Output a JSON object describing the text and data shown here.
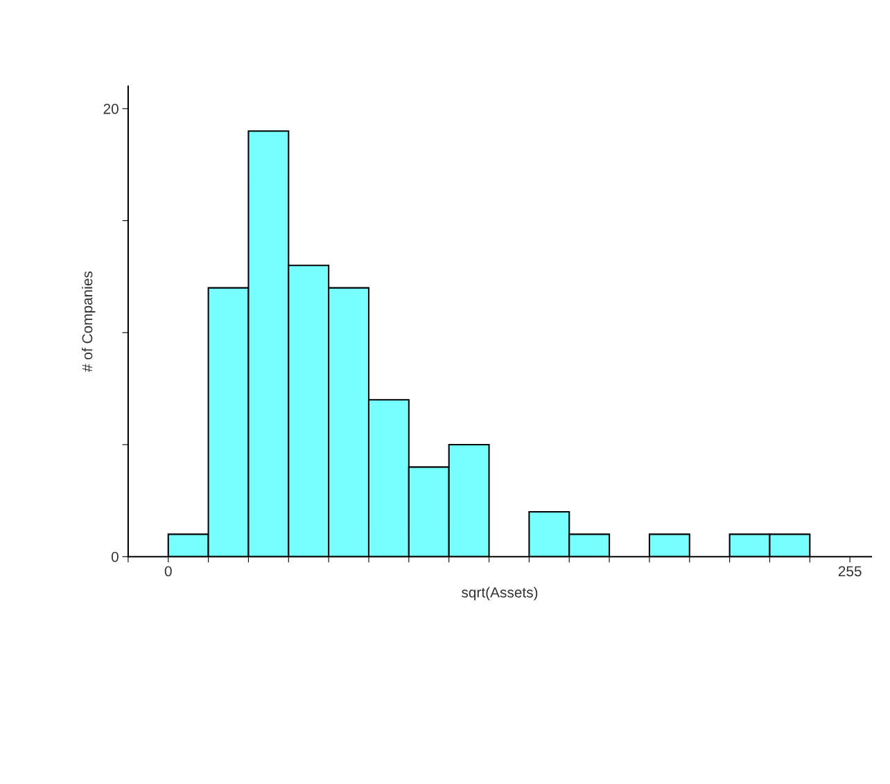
{
  "chart_data": {
    "type": "histogram",
    "xlabel": "sqrt(Assets)",
    "ylabel": "# of Companies",
    "bins": [
      0,
      15,
      30,
      45,
      60,
      75,
      90,
      105,
      120,
      135,
      150,
      165,
      180,
      195,
      210,
      225,
      240
    ],
    "values": [
      1,
      12,
      19,
      13,
      12,
      7,
      4,
      5,
      0,
      2,
      1,
      0,
      1,
      0,
      1,
      1
    ],
    "color": "#77ffff",
    "xlim": [
      -15,
      263
    ],
    "xticks": [
      {
        "value": -15,
        "label": null
      },
      0,
      {
        "value": 15,
        "label": null
      },
      {
        "value": 30,
        "label": null
      },
      {
        "value": 45,
        "label": null
      },
      {
        "value": 60,
        "label": null
      },
      {
        "value": 75,
        "label": null
      },
      {
        "value": 90,
        "label": null
      },
      {
        "value": 105,
        "label": null
      },
      {
        "value": 120,
        "label": null
      },
      {
        "value": 135,
        "label": null
      },
      {
        "value": 150,
        "label": null
      },
      {
        "value": 165,
        "label": null
      },
      {
        "value": 180,
        "label": null
      },
      {
        "value": 195,
        "label": null
      },
      {
        "value": 210,
        "label": null
      },
      {
        "value": 225,
        "label": null
      },
      {
        "value": 240,
        "label": null
      },
      255
    ],
    "ylim": [
      0,
      21
    ],
    "yticks": [
      0,
      {
        "value": 5,
        "label": null
      },
      {
        "value": 10,
        "label": null
      },
      {
        "value": 15,
        "label": null
      },
      20
    ],
    "grid": false
  }
}
